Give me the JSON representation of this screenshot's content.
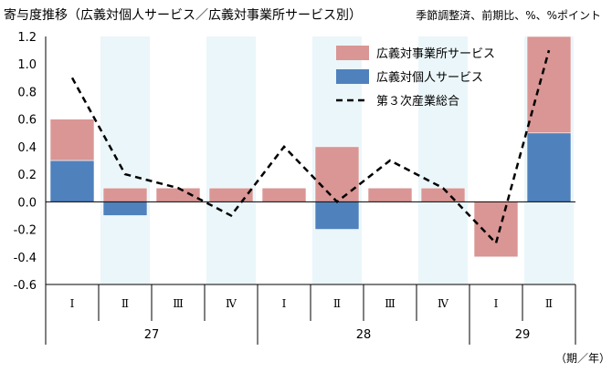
{
  "title": "寄与度推移（広義対個人サービス／広義対事業所サービス別）",
  "note": "季節調整済、前期比、%、%ポイント",
  "chart_data": {
    "type": "bar",
    "stacked": true,
    "categories": [
      "Ⅰ",
      "Ⅱ",
      "Ⅲ",
      "Ⅳ",
      "Ⅰ",
      "Ⅱ",
      "Ⅲ",
      "Ⅳ",
      "Ⅰ",
      "Ⅱ"
    ],
    "year_groups": [
      {
        "label": "27",
        "start": 0,
        "end": 3
      },
      {
        "label": "28",
        "start": 4,
        "end": 7
      },
      {
        "label": "29",
        "start": 8,
        "end": 9
      }
    ],
    "shaded_categories": [
      1,
      3,
      5,
      7,
      9
    ],
    "series": [
      {
        "name": "広義対個人サービス",
        "kind": "bar",
        "color": "#4f81bd",
        "values": [
          0.3,
          -0.1,
          0.0,
          0.0,
          0.0,
          -0.2,
          0.0,
          0.0,
          0.0,
          0.5
        ]
      },
      {
        "name": "広義対事業所サービス",
        "kind": "bar",
        "color": "#d99694",
        "values": [
          0.3,
          0.1,
          0.1,
          0.1,
          0.1,
          0.4,
          0.1,
          0.1,
          -0.4,
          0.7
        ]
      },
      {
        "name": "第３次産業総合",
        "kind": "line",
        "color": "#000000",
        "dash": true,
        "values": [
          0.9,
          0.2,
          0.1,
          -0.1,
          0.4,
          0.0,
          0.3,
          0.1,
          -0.3,
          1.1
        ]
      }
    ],
    "legend_order": [
      1,
      0,
      2
    ],
    "legend_position": "top-right",
    "ylim": [
      -0.6,
      1.2
    ],
    "yticks": [
      1.2,
      1.0,
      0.8,
      0.6,
      0.4,
      0.2,
      0.0,
      -0.2,
      -0.4,
      -0.6
    ],
    "ytick_labels": [
      "1.2",
      "1.0",
      "0.8",
      "0.6",
      "0.4",
      "0.2",
      "0.0",
      "-0.2",
      "-0.4",
      "-0.6"
    ],
    "xunit_label": "（期／年）",
    "grid": false,
    "band_color": "#eaf6fa"
  }
}
